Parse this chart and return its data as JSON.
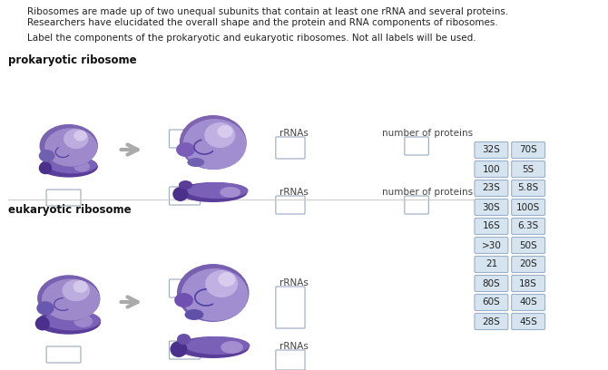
{
  "title_line1": "Ribosomes are made up of two unequal subunits that contain at least one rRNA and several proteins.",
  "title_line2": "Researchers have elucidated the overall shape and the protein and RNA components of ribosomes.",
  "instruction": "Label the components of the prokaryotic and eukaryotic ribosomes. Not all labels will be used.",
  "section1_label": "prokaryotic ribosome",
  "section2_label": "eukaryotic ribosome",
  "rrnas_label": "rRNAs",
  "num_proteins_label": "number of proteins",
  "chips": [
    "32S",
    "70S",
    "100",
    "5S",
    "23S",
    "5.8S",
    "30S",
    "100S",
    "16S",
    "6.3S",
    ">30",
    "50S",
    "21",
    "20S",
    "80S",
    "18S",
    "60S",
    "40S",
    "28S",
    "45S"
  ],
  "bg_color": "#ffffff",
  "purple_large": "#9b82c8",
  "purple_large_dark": "#6e52a8",
  "purple_small": "#5e3d99",
  "purple_small_light": "#b09fd8",
  "chip_bg": "#d6e4f0",
  "chip_border": "#9ab0c8"
}
